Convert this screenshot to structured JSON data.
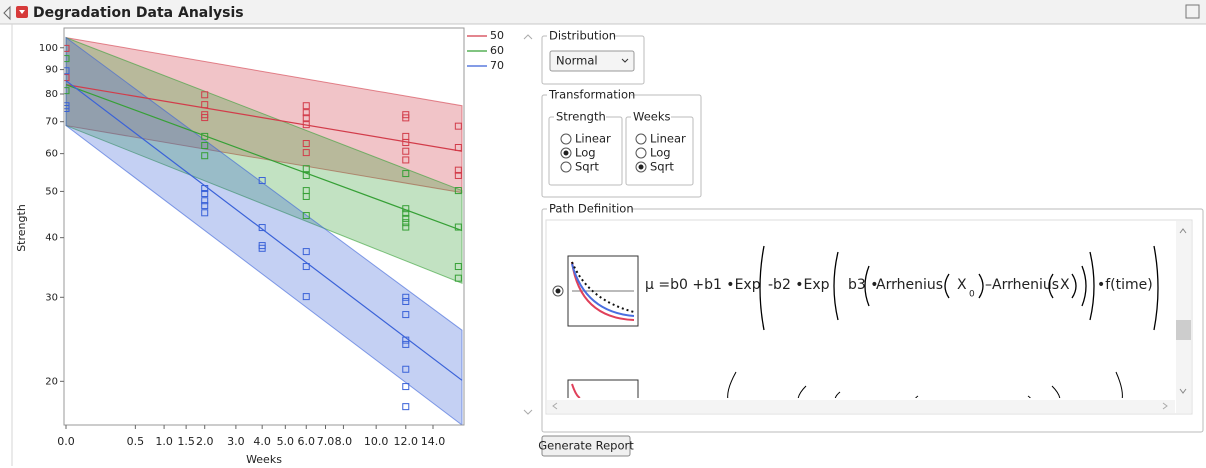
{
  "header": {
    "title": "Degradation Data Analysis"
  },
  "chart_data": {
    "type": "scatter",
    "x_label": "Weeks",
    "y_label": "Strength",
    "x_scale": "sqrt",
    "y_scale": "log",
    "xlim": [
      0,
      16.3
    ],
    "xticks": [
      {
        "value": 0,
        "label": "0.0"
      },
      0.5,
      {
        "value": 1,
        "label": "1.0"
      },
      1.5,
      {
        "value": 2,
        "label": "2.0"
      },
      {
        "value": 3,
        "label": "3.0"
      },
      {
        "value": 4,
        "label": "4.0"
      },
      {
        "value": 5,
        "label": "5.0"
      },
      {
        "value": 6,
        "label": "6.0"
      },
      {
        "value": 7,
        "label": "7.0"
      },
      {
        "value": 8,
        "label": "8.0"
      },
      {
        "value": 10,
        "label": "10.0"
      },
      {
        "value": 12,
        "label": "12.0"
      },
      {
        "value": 14,
        "label": "14.0"
      }
    ],
    "ylim": [
      16.2,
      110
    ],
    "yticks": [
      20,
      30,
      40,
      50,
      60,
      70,
      80,
      90,
      100
    ],
    "band_opacity": 0.3,
    "fit_x": [
      0,
      16.3
    ],
    "series": [
      {
        "name": "50",
        "color": "#d23c4a",
        "x": [
          0,
          0,
          2,
          2,
          2,
          2,
          6,
          6,
          6,
          6,
          6,
          6,
          12,
          12,
          12,
          12,
          12,
          12,
          16,
          16,
          16,
          16
        ],
        "values": [
          99.7,
          86.6,
          79.7,
          76,
          72.4,
          71.4,
          75.6,
          73.1,
          71.3,
          69,
          63,
          60.3,
          72.4,
          71.3,
          65.2,
          63.3,
          60.7,
          58.2,
          68.5,
          61.8,
          55.4,
          54
        ],
        "fit_values": [
          83.7,
          60.7
        ],
        "fit_lower": [
          68.7,
          49.7
        ],
        "fit_upper": [
          105,
          75.6
        ]
      },
      {
        "name": "60",
        "color": "#36a036",
        "x": [
          0,
          0,
          2,
          2,
          2,
          6,
          6,
          6,
          6,
          6,
          12,
          12,
          12,
          12,
          12,
          12,
          16,
          16,
          16,
          16
        ],
        "values": [
          94.9,
          81.3,
          65.2,
          62.4,
          59.4,
          55.8,
          54,
          50.2,
          48.8,
          44.5,
          54.5,
          46,
          45,
          43.9,
          43,
          42.1,
          50.2,
          42.1,
          34.8,
          32.9
        ],
        "fit_values": [
          83.7,
          41.4
        ],
        "fit_lower": [
          68.7,
          32.1
        ],
        "fit_upper": [
          105,
          50.2
        ]
      },
      {
        "name": "70",
        "color": "#3a62d8",
        "x": [
          0,
          0,
          0,
          2,
          2,
          2,
          2,
          2,
          4,
          4,
          4,
          4,
          6,
          6,
          6,
          12,
          12,
          12,
          12,
          12,
          12,
          12,
          12
        ],
        "values": [
          89.5,
          75.6,
          74.6,
          50.7,
          49.5,
          47.8,
          46.7,
          45.1,
          52.7,
          42,
          38.5,
          38,
          37.4,
          34.8,
          30.1,
          30,
          29.4,
          27.6,
          24.4,
          23.9,
          21.2,
          19.5,
          17.7
        ],
        "fit_values": [
          85.3,
          20.1
        ],
        "fit_lower": [
          68.7,
          16.2
        ],
        "fit_upper": [
          105,
          25.6
        ]
      }
    ]
  },
  "distribution": {
    "label": "Distribution",
    "value": "Normal"
  },
  "transformation": {
    "label": "Transformation",
    "strength": {
      "label": "Strength",
      "options": [
        "Linear",
        "Log",
        "Sqrt"
      ],
      "selected": 1
    },
    "weeks": {
      "label": "Weeks",
      "options": [
        "Linear",
        "Log",
        "Sqrt"
      ],
      "selected": 2
    }
  },
  "path_definition": {
    "label": "Path Definition",
    "formula": [
      "μ =b0 +b1 •Exp",
      "-b2 •Exp",
      "b3 •",
      "Arrhenius",
      "X",
      "0",
      "–Arrhenius",
      "X",
      "•f(time)"
    ]
  },
  "button": "Generate Report"
}
